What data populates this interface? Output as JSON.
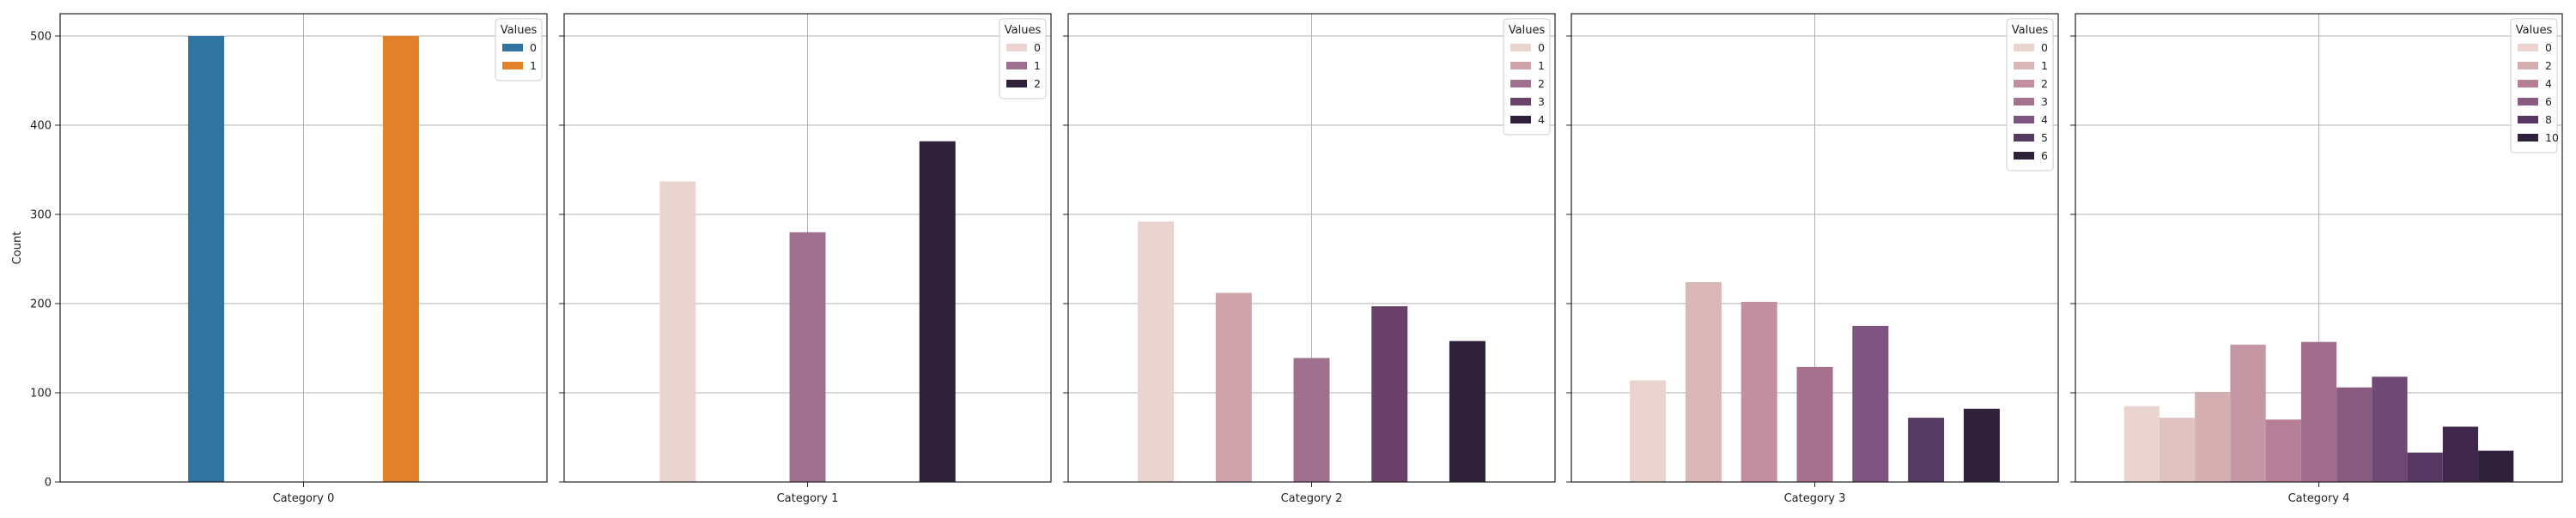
{
  "chart_data": {
    "type": "bar",
    "ylabel": "Count",
    "ylim": [
      0,
      525
    ],
    "yticks": [
      0,
      100,
      200,
      300,
      400,
      500
    ],
    "grid": true,
    "legend_title": "Values",
    "legend_position": "top-right",
    "panels": [
      {
        "category": "Category 0",
        "hue_levels": [
          "0",
          "1"
        ],
        "legend_entries": [
          "0",
          "1"
        ],
        "colors": [
          "#3274a1",
          "#e1812c"
        ],
        "values": [
          500,
          500
        ]
      },
      {
        "category": "Category 1",
        "hue_levels": [
          "0",
          "1",
          "2"
        ],
        "legend_entries": [
          "0",
          "1",
          "2"
        ],
        "colors": [
          "#ead4d0",
          "#a0718f",
          "#2e2139"
        ],
        "values": [
          337,
          280,
          382
        ]
      },
      {
        "category": "Category 2",
        "hue_levels": [
          "0",
          "1",
          "2",
          "3",
          "4"
        ],
        "legend_entries": [
          "0",
          "1",
          "2",
          "3",
          "4"
        ],
        "colors": [
          "#ead4d0",
          "#cfa3aa",
          "#a0718f",
          "#6a4169",
          "#2e2139"
        ],
        "values": [
          292,
          212,
          139,
          197,
          158
        ]
      },
      {
        "category": "Category 3",
        "hue_levels": [
          "0",
          "1",
          "2",
          "3",
          "4",
          "5",
          "6"
        ],
        "legend_entries": [
          "0",
          "1",
          "2",
          "3",
          "4",
          "5",
          "6"
        ],
        "colors": [
          "#ead4d0",
          "#dab6b6",
          "#c18f9f",
          "#a5728e",
          "#7e5481",
          "#553a61",
          "#2e2139"
        ],
        "values": [
          114,
          224,
          202,
          129,
          175,
          72,
          82
        ]
      },
      {
        "category": "Category 4",
        "hue_levels": [
          "0",
          "1",
          "2",
          "3",
          "4",
          "5",
          "6",
          "7",
          "8",
          "9",
          "10"
        ],
        "legend_entries": [
          "0",
          "2",
          "4",
          "6",
          "8",
          "10"
        ],
        "colors": [
          "#ead4d0",
          "#e0c2c0",
          "#d4aeb1",
          "#c596a3",
          "#b58097",
          "#a06d8d",
          "#8a5b81",
          "#704874",
          "#573764",
          "#40284d",
          "#2e2139"
        ],
        "values": [
          85,
          72,
          101,
          154,
          70,
          157,
          106,
          118,
          33,
          62,
          35
        ]
      }
    ]
  }
}
